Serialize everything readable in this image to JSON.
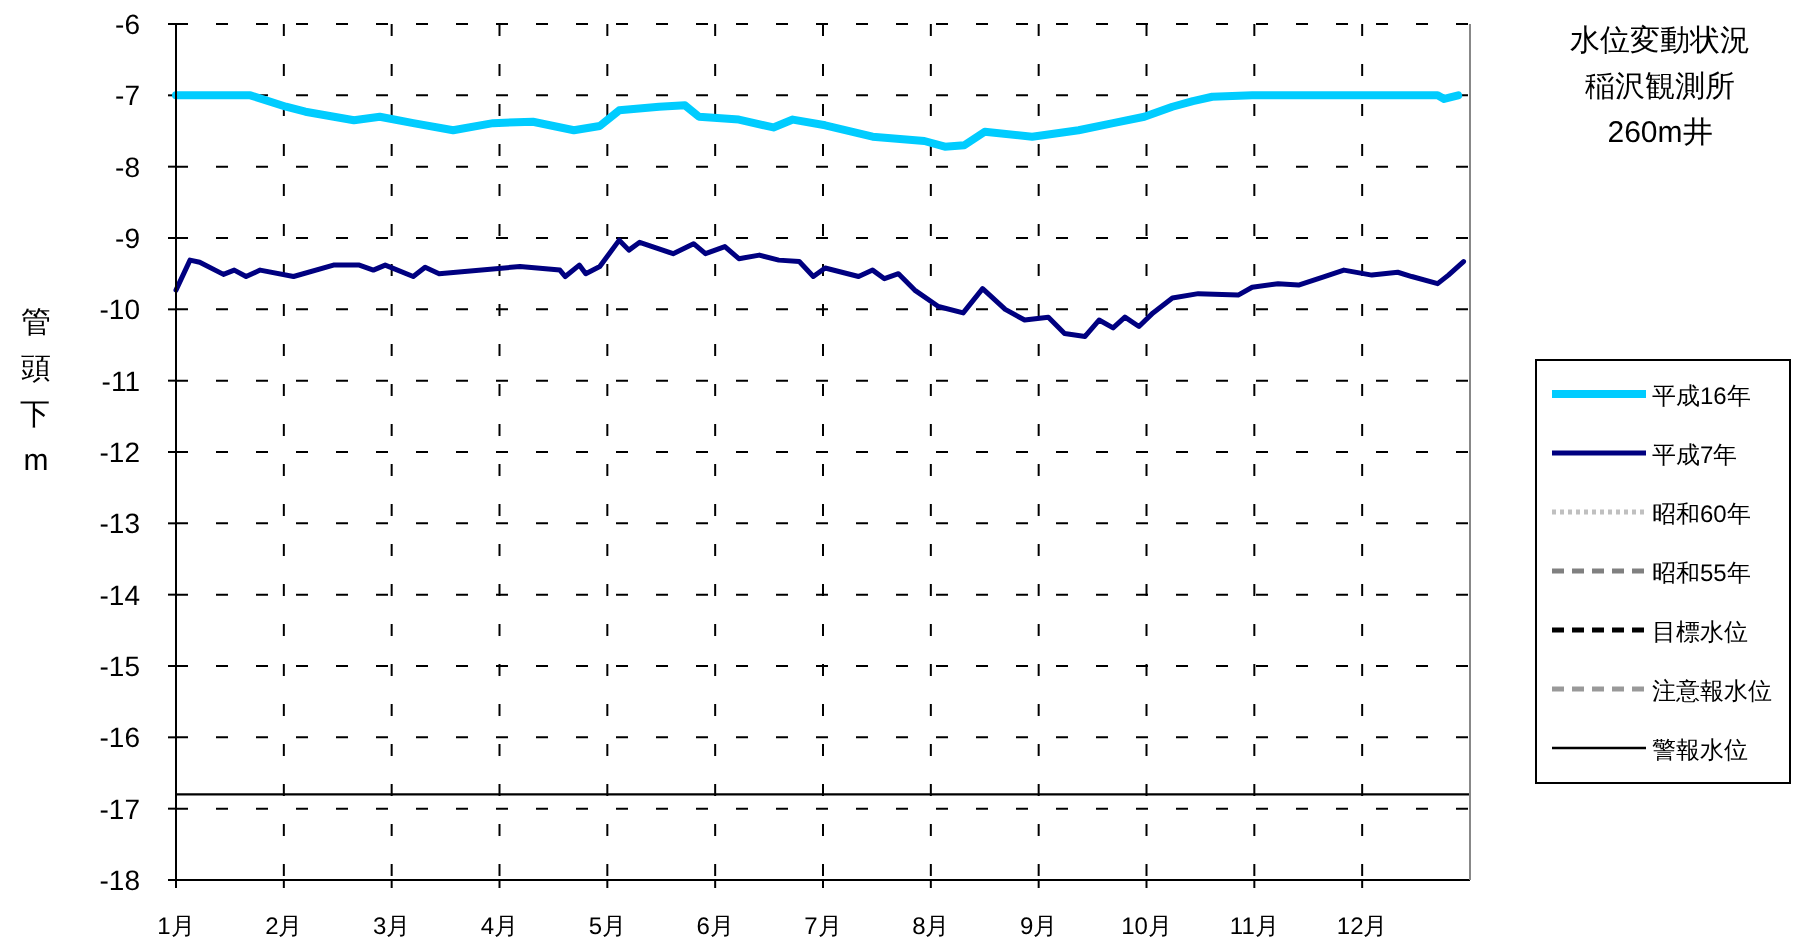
{
  "chart_data": {
    "type": "line",
    "title": "水位変動状況",
    "subtitle": "稲沢観測所",
    "annotations": [
      "260m井"
    ],
    "ylabel": "管頭下 m",
    "xlim": [
      1,
      13
    ],
    "xticks": [
      {
        "value": 1,
        "label": "1月"
      },
      {
        "value": 2,
        "label": "2月"
      },
      {
        "value": 3,
        "label": "3月"
      },
      {
        "value": 4,
        "label": "4月"
      },
      {
        "value": 5,
        "label": "5月"
      },
      {
        "value": 6,
        "label": "6月"
      },
      {
        "value": 7,
        "label": "7月"
      },
      {
        "value": 8,
        "label": "8月"
      },
      {
        "value": 9,
        "label": "9月"
      },
      {
        "value": 10,
        "label": "10月"
      },
      {
        "value": 11,
        "label": "11月"
      },
      {
        "value": 12,
        "label": "12月"
      }
    ],
    "ylim": [
      -18,
      -6
    ],
    "yticks": [
      -6,
      -7,
      -8,
      -9,
      -10,
      -11,
      -12,
      -13,
      -14,
      -15,
      -16,
      -17,
      -18
    ],
    "grid": true,
    "legend": "right",
    "marker": "none",
    "series": [
      {
        "name": "平成16年",
        "color": "#00ccff",
        "line_style": "solid",
        "x": [
          1.0,
          1.69,
          2.02,
          2.2,
          2.65,
          2.89,
          3.2,
          3.57,
          3.94,
          4.31,
          4.69,
          4.93,
          5.11,
          5.48,
          5.72,
          5.85,
          6.22,
          6.54,
          6.72,
          7.02,
          7.46,
          7.94,
          8.13,
          8.31,
          8.5,
          8.94,
          9.37,
          9.69,
          9.98,
          10.24,
          10.43,
          10.61,
          10.98,
          12.7,
          12.76,
          12.89
        ],
        "values": [
          -7.0,
          -7.0,
          -7.16,
          -7.23,
          -7.35,
          -7.3,
          -7.39,
          -7.49,
          -7.39,
          -7.37,
          -7.49,
          -7.43,
          -7.21,
          -7.16,
          -7.14,
          -7.3,
          -7.34,
          -7.45,
          -7.34,
          -7.42,
          -7.58,
          -7.64,
          -7.72,
          -7.7,
          -7.51,
          -7.58,
          -7.49,
          -7.39,
          -7.3,
          -7.16,
          -7.08,
          -7.02,
          -7.0,
          -7.0,
          -7.05,
          -7.0
        ]
      },
      {
        "name": "平成7年",
        "color": "#000080",
        "line_style": "solid",
        "x": [
          1.0,
          1.13,
          1.22,
          1.44,
          1.54,
          1.65,
          1.78,
          2.09,
          2.46,
          2.7,
          2.83,
          2.94,
          3.2,
          3.31,
          3.44,
          4.19,
          4.56,
          4.61,
          4.74,
          4.8,
          4.93,
          5.11,
          5.2,
          5.3,
          5.61,
          5.8,
          5.91,
          6.09,
          6.22,
          6.41,
          6.59,
          6.78,
          6.91,
          7.02,
          7.33,
          7.46,
          7.57,
          7.7,
          7.85,
          8.07,
          8.3,
          8.48,
          8.69,
          8.87,
          9.09,
          9.24,
          9.43,
          9.56,
          9.69,
          9.8,
          9.93,
          10.06,
          10.24,
          10.48,
          10.85,
          10.98,
          11.22,
          11.41,
          11.65,
          11.83,
          12.09,
          12.33,
          12.46,
          12.7,
          12.8,
          12.94
        ],
        "values": [
          -9.73,
          -9.31,
          -9.34,
          -9.51,
          -9.45,
          -9.54,
          -9.45,
          -9.54,
          -9.38,
          -9.38,
          -9.45,
          -9.38,
          -9.54,
          -9.41,
          -9.5,
          -9.4,
          -9.45,
          -9.54,
          -9.38,
          -9.5,
          -9.4,
          -9.03,
          -9.17,
          -9.06,
          -9.22,
          -9.08,
          -9.22,
          -9.12,
          -9.29,
          -9.24,
          -9.31,
          -9.33,
          -9.54,
          -9.42,
          -9.54,
          -9.45,
          -9.57,
          -9.5,
          -9.73,
          -9.96,
          -10.05,
          -9.71,
          -10.0,
          -10.15,
          -10.11,
          -10.34,
          -10.38,
          -10.15,
          -10.26,
          -10.11,
          -10.24,
          -10.05,
          -9.84,
          -9.78,
          -9.8,
          -9.69,
          -9.64,
          -9.66,
          -9.54,
          -9.45,
          -9.52,
          -9.48,
          -9.54,
          -9.64,
          -9.52,
          -9.33
        ]
      },
      {
        "name": "昭和60年",
        "color": "#c0c0c0",
        "line_style": "dotted"
      },
      {
        "name": "昭和55年",
        "color": "#808080",
        "line_style": "dashed"
      },
      {
        "name": "目標水位",
        "color": "#000000",
        "line_style": "dashed"
      },
      {
        "name": "注意報水位",
        "color": "#999999",
        "line_style": "dashed"
      }
    ],
    "ref_lines": [
      {
        "axis": "y",
        "value": -16.8,
        "label": "警報水位",
        "color": "#000000",
        "line_style": "solid"
      }
    ]
  }
}
